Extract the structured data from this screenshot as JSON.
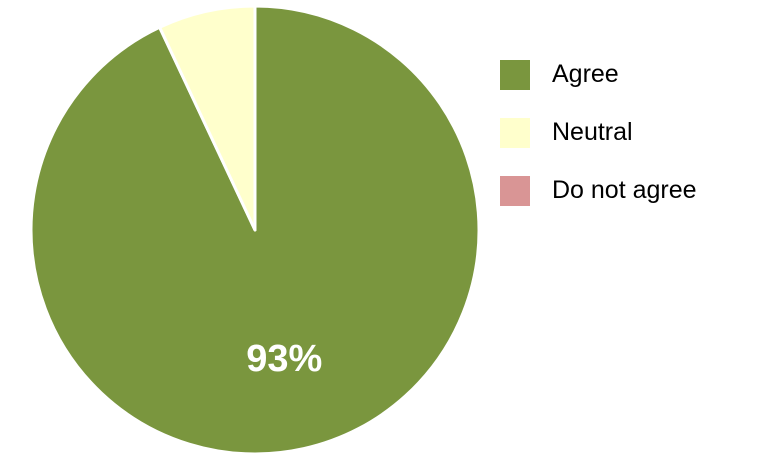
{
  "chart_data": {
    "type": "pie",
    "categories": [
      "Agree",
      "Neutral",
      "Do not agree"
    ],
    "values": [
      93,
      7,
      0
    ],
    "colors": [
      "#7a963e",
      "#ffffcc",
      "#d99595"
    ],
    "data_labels": [
      "93%",
      "",
      ""
    ],
    "start_angle_deg": 0,
    "direction": "clockwise",
    "legend_position": "right"
  },
  "legend": {
    "items": [
      {
        "label": "Agree",
        "color": "#7a963e"
      },
      {
        "label": "Neutral",
        "color": "#ffffcc"
      },
      {
        "label": "Do not agree",
        "color": "#d99595"
      }
    ]
  }
}
